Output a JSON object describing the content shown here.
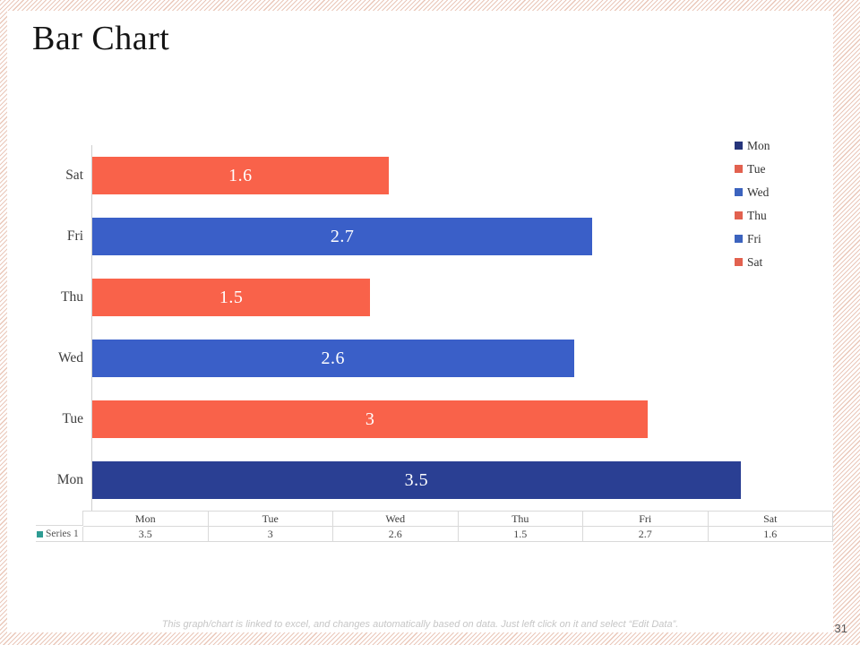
{
  "slide": {
    "title": "Bar Chart",
    "page_number": "31",
    "footer_note": "This graph/chart is linked to excel, and changes automatically based on data. Just left click on it and select “Edit Data”."
  },
  "chart_data": {
    "type": "bar",
    "orientation": "horizontal",
    "title": "",
    "series_name": "Series 1",
    "categories": [
      "Mon",
      "Tue",
      "Wed",
      "Thu",
      "Fri",
      "Sat"
    ],
    "values": [
      3.5,
      3,
      2.6,
      1.5,
      2.7,
      1.6
    ],
    "data_labels": [
      "3.5",
      "3",
      "2.6",
      "1.5",
      "2.7",
      "1.6"
    ],
    "bar_order_top_to_bottom": [
      "Sat",
      "Fri",
      "Thu",
      "Wed",
      "Tue",
      "Mon"
    ],
    "xlim": [
      0,
      4
    ],
    "grid": false,
    "legend_position": "right",
    "axis_line_color": "#cfcfcf",
    "bar_colors": {
      "Mon": "#2a3f93",
      "Tue": "#f9624a",
      "Wed": "#3a5fc8",
      "Thu": "#f9624a",
      "Fri": "#3a5fc8",
      "Sat": "#f9624a"
    },
    "legend": [
      {
        "label": "Mon",
        "color": "#26357b"
      },
      {
        "label": "Tue",
        "color": "#e2614f"
      },
      {
        "label": "Wed",
        "color": "#3c63be"
      },
      {
        "label": "Thu",
        "color": "#e2614f"
      },
      {
        "label": "Fri",
        "color": "#3c63be"
      },
      {
        "label": "Sat",
        "color": "#e2614f"
      }
    ]
  },
  "table": {
    "row_header": "Series 1",
    "marker_color": "#2e9c93",
    "columns": [
      "Mon",
      "Tue",
      "Wed",
      "Thu",
      "Fri",
      "Sat"
    ],
    "values": [
      "3.5",
      "3",
      "2.6",
      "1.5",
      "2.7",
      "1.6"
    ]
  },
  "colors": {
    "frame_stripe": "#eac7b9",
    "table_border": "#d9d9d9",
    "title_text": "#141414",
    "footer_text": "#c6c6c6"
  }
}
